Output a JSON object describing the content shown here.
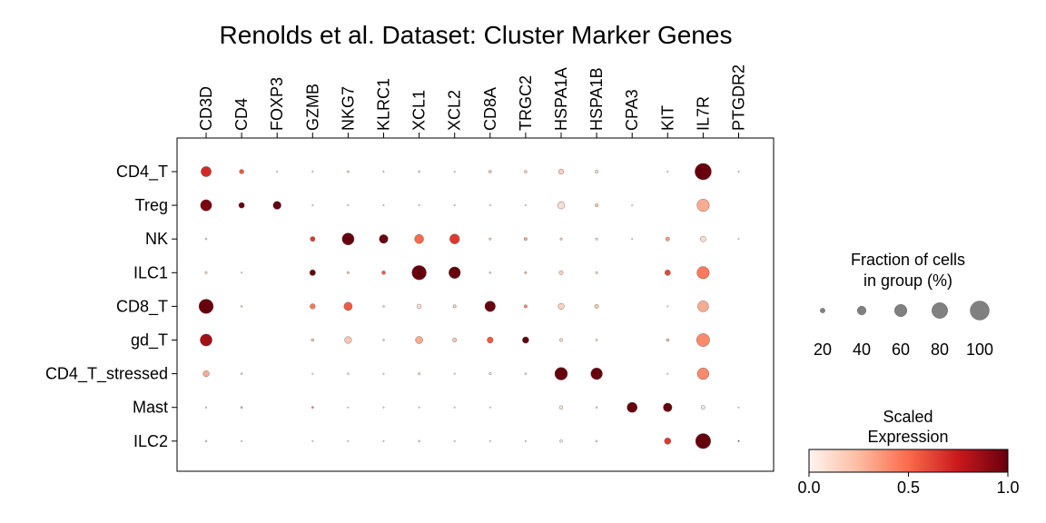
{
  "chart_data": {
    "type": "dotplot",
    "title": "Renolds et al. Dataset: Cluster Marker Genes",
    "genes": [
      "CD3D",
      "CD4",
      "FOXP3",
      "GZMB",
      "NKG7",
      "KLRC1",
      "XCL1",
      "XCL2",
      "CD8A",
      "TRGC2",
      "HSPA1A",
      "HSPA1B",
      "CPA3",
      "KIT",
      "IL7R",
      "PTGDR2"
    ],
    "groups": [
      "CD4_T",
      "Treg",
      "NK",
      "ILC1",
      "CD8_T",
      "gd_T",
      "CD4_T_stressed",
      "Mast",
      "ILC2"
    ],
    "fraction_pct": [
      [
        48,
        18,
        2,
        4,
        7,
        2,
        6,
        4,
        10,
        10,
        22,
        12,
        0,
        2,
        84,
        2
      ],
      [
        54,
        24,
        36,
        3,
        3,
        2,
        2,
        2,
        2,
        3,
        32,
        12,
        2,
        0,
        60,
        0
      ],
      [
        6,
        0,
        0,
        20,
        58,
        40,
        42,
        46,
        8,
        12,
        8,
        8,
        4,
        16,
        24,
        2
      ],
      [
        8,
        2,
        0,
        25,
        8,
        14,
        72,
        56,
        6,
        8,
        16,
        8,
        0,
        24,
        60,
        0
      ],
      [
        72,
        6,
        0,
        22,
        38,
        6,
        18,
        12,
        50,
        12,
        26,
        16,
        0,
        2,
        52,
        0
      ],
      [
        58,
        0,
        0,
        10,
        30,
        6,
        32,
        16,
        26,
        28,
        12,
        6,
        0,
        10,
        64,
        0
      ],
      [
        26,
        6,
        0,
        2,
        6,
        3,
        8,
        4,
        8,
        6,
        62,
        56,
        0,
        2,
        56,
        0
      ],
      [
        5,
        7,
        0,
        7,
        3,
        2,
        2,
        2,
        2,
        0,
        14,
        6,
        48,
        40,
        16,
        2
      ],
      [
        6,
        2,
        0,
        2,
        4,
        3,
        6,
        4,
        2,
        2,
        10,
        6,
        0,
        28,
        76,
        4
      ]
    ],
    "scaled_expression": [
      [
        0.7,
        0.55,
        0.0,
        0.1,
        0.15,
        0.05,
        0.1,
        0.05,
        0.2,
        0.15,
        0.15,
        0.1,
        0.0,
        0.1,
        1.0,
        0.0
      ],
      [
        0.95,
        1.0,
        1.0,
        0.05,
        0.05,
        0.05,
        0.05,
        0.05,
        0.05,
        0.05,
        0.1,
        0.2,
        0.0,
        0.0,
        0.3,
        0.0
      ],
      [
        0.1,
        0.0,
        0.0,
        0.65,
        1.0,
        1.0,
        0.5,
        0.65,
        0.15,
        0.3,
        0.15,
        0.1,
        0.05,
        0.35,
        0.1,
        0.0
      ],
      [
        0.1,
        0.05,
        0.0,
        1.0,
        0.2,
        0.55,
        1.0,
        1.0,
        0.15,
        0.25,
        0.15,
        0.1,
        0.0,
        0.6,
        0.45,
        0.0
      ],
      [
        1.0,
        0.1,
        0.0,
        0.45,
        0.55,
        0.1,
        0.1,
        0.15,
        1.0,
        0.4,
        0.15,
        0.2,
        0.0,
        0.05,
        0.3,
        0.0
      ],
      [
        0.85,
        0.0,
        0.0,
        0.2,
        0.2,
        0.1,
        0.3,
        0.2,
        0.55,
        1.0,
        0.1,
        0.1,
        0.0,
        0.25,
        0.4,
        0.0
      ],
      [
        0.3,
        0.05,
        0.0,
        0.05,
        0.05,
        0.05,
        0.05,
        0.05,
        0.05,
        0.05,
        1.0,
        1.0,
        0.0,
        0.05,
        0.4,
        0.0
      ],
      [
        0.05,
        0.25,
        0.0,
        0.4,
        0.05,
        0.05,
        0.05,
        0.05,
        0.05,
        0.0,
        0.05,
        0.05,
        1.0,
        1.0,
        0.05,
        0.0
      ],
      [
        0.05,
        0.05,
        0.0,
        0.05,
        0.05,
        0.05,
        0.05,
        0.05,
        0.05,
        0.05,
        0.05,
        0.05,
        0.0,
        0.65,
        1.0,
        1.0
      ]
    ],
    "size_legend": {
      "title_line1": "Fraction of cells",
      "title_line2": "in group (%)",
      "values": [
        20,
        40,
        60,
        80,
        100
      ],
      "labels": [
        "20",
        "40",
        "60",
        "80",
        "100"
      ],
      "color": "#808080"
    },
    "color_legend": {
      "title_line1": "Scaled",
      "title_line2": "Expression",
      "min": 0.0,
      "max": 1.0,
      "tick_labels": [
        "0.0",
        "0.5",
        "1.0"
      ],
      "colormap": [
        "#fff5f0",
        "#fcbba1",
        "#fb6a4a",
        "#cb181d",
        "#67000d"
      ]
    }
  }
}
